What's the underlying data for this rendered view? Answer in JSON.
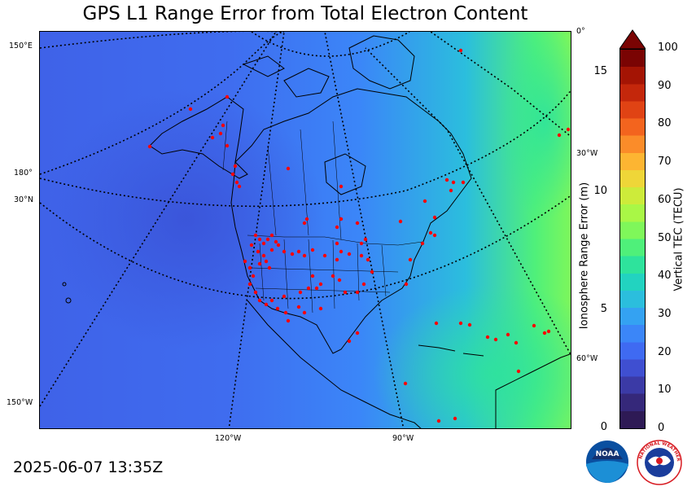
{
  "title": "GPS L1 Range Error from Total Electron Content",
  "timestamp": "2025-06-07 13:35Z",
  "map": {
    "left_labels": [
      "150°E",
      "180°",
      "30°N",
      "150°W"
    ],
    "right_labels": [
      "0°",
      "30°W",
      "60°W"
    ],
    "bottom_labels": [
      "120°W",
      "90°W"
    ],
    "station_color": "#ff0000"
  },
  "colorbar": {
    "tec_label": "Vertical TEC (TECU)",
    "tec_ticks": [
      "100",
      "90",
      "80",
      "70",
      "60",
      "50",
      "40",
      "30",
      "20",
      "10",
      "0"
    ],
    "range_label": "Ionosphere Range Error (m)",
    "range_ticks": [
      "15",
      "10",
      "5",
      "0"
    ],
    "colors": [
      "#2e1a55",
      "#35287a",
      "#3b3aa6",
      "#3f4fd1",
      "#3f6af2",
      "#3b86f8",
      "#34a2f2",
      "#2bbedd",
      "#22d3c0",
      "#2ee39c",
      "#4ff07a",
      "#7ff75a",
      "#a9f746",
      "#cdeb3a",
      "#efd638",
      "#fdb532",
      "#fb8c29",
      "#f3641e",
      "#e04314",
      "#c4270b",
      "#a41404",
      "#7a0403"
    ],
    "extend_color": "#7a0403"
  },
  "logos": {
    "noaa": "NOAA",
    "nws": "NATIONAL WEATHER SERVICE"
  }
}
